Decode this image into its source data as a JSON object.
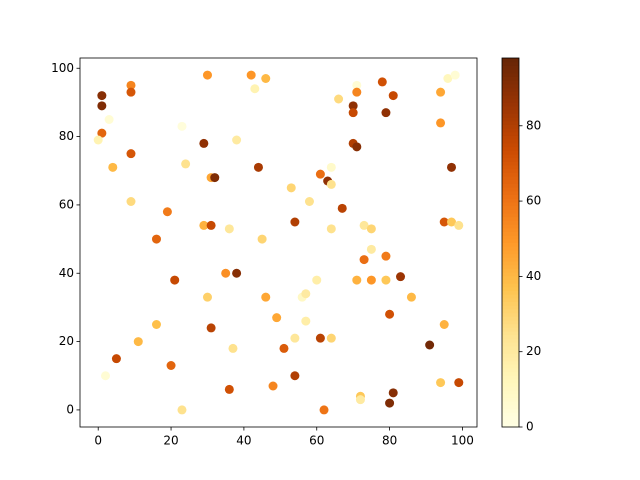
{
  "chart_data": {
    "type": "scatter",
    "x": [
      1,
      1,
      1,
      0,
      3,
      4,
      9,
      9,
      9,
      9,
      2,
      5,
      11,
      16,
      16,
      19,
      20,
      21,
      23,
      24,
      23,
      30,
      29,
      31,
      32,
      29,
      31,
      30,
      31,
      36,
      35,
      38,
      38,
      37,
      36,
      42,
      43,
      46,
      44,
      45,
      46,
      48,
      49,
      51,
      53,
      54,
      54,
      54,
      56,
      57,
      57,
      58,
      60,
      61,
      63,
      64,
      64,
      61,
      64,
      64,
      62,
      66,
      67,
      70,
      70,
      71,
      71,
      70,
      71,
      71,
      72,
      72,
      73,
      73,
      75,
      75,
      75,
      78,
      79,
      79,
      79,
      80,
      81,
      80,
      81,
      83,
      86,
      91,
      94,
      94,
      94,
      95,
      95,
      96,
      97,
      99,
      97,
      98,
      99
    ],
    "y": [
      92,
      89,
      81,
      79,
      85,
      71,
      95,
      93,
      75,
      61,
      10,
      15,
      20,
      50,
      25,
      58,
      13,
      38,
      83,
      72,
      0,
      98,
      78,
      68,
      68,
      54,
      54,
      33,
      24,
      53,
      40,
      40,
      79,
      18,
      6,
      98,
      94,
      97,
      71,
      50,
      33,
      7,
      27,
      18,
      65,
      55,
      21,
      10,
      33,
      34,
      26,
      61,
      38,
      69,
      67,
      71,
      66,
      21,
      21,
      53,
      0,
      91,
      59,
      89,
      87,
      95,
      93,
      78,
      77,
      38,
      4,
      3,
      54,
      44,
      53,
      47,
      38,
      96,
      87,
      45,
      38,
      28,
      92,
      2,
      5,
      39,
      33,
      19,
      93,
      84,
      8,
      55,
      25,
      97,
      55,
      54,
      71,
      98,
      8
    ],
    "c": [
      90,
      92,
      65,
      15,
      5,
      40,
      55,
      70,
      70,
      28,
      5,
      75,
      40,
      65,
      38,
      58,
      65,
      75,
      3,
      25,
      25,
      50,
      88,
      45,
      92,
      42,
      75,
      32,
      78,
      22,
      52,
      90,
      20,
      25,
      72,
      50,
      15,
      40,
      82,
      30,
      45,
      55,
      45,
      68,
      30,
      80,
      22,
      80,
      10,
      20,
      18,
      25,
      18,
      62,
      88,
      8,
      25,
      78,
      30,
      25,
      60,
      28,
      78,
      88,
      75,
      5,
      55,
      80,
      90,
      42,
      35,
      20,
      22,
      62,
      30,
      20,
      50,
      72,
      88,
      58,
      35,
      72,
      75,
      92,
      90,
      85,
      40,
      95,
      45,
      50,
      35,
      70,
      42,
      12,
      35,
      25,
      88,
      5,
      75
    ],
    "colormap": "YlOrBr",
    "clim": [
      0,
      98
    ],
    "cticks": [
      0,
      20,
      40,
      60,
      80
    ],
    "xlim": [
      -5,
      104
    ],
    "ylim": [
      -5,
      103
    ],
    "xticks": [
      0,
      20,
      40,
      60,
      80,
      100
    ],
    "yticks": [
      0,
      20,
      40,
      60,
      80,
      100
    ]
  }
}
